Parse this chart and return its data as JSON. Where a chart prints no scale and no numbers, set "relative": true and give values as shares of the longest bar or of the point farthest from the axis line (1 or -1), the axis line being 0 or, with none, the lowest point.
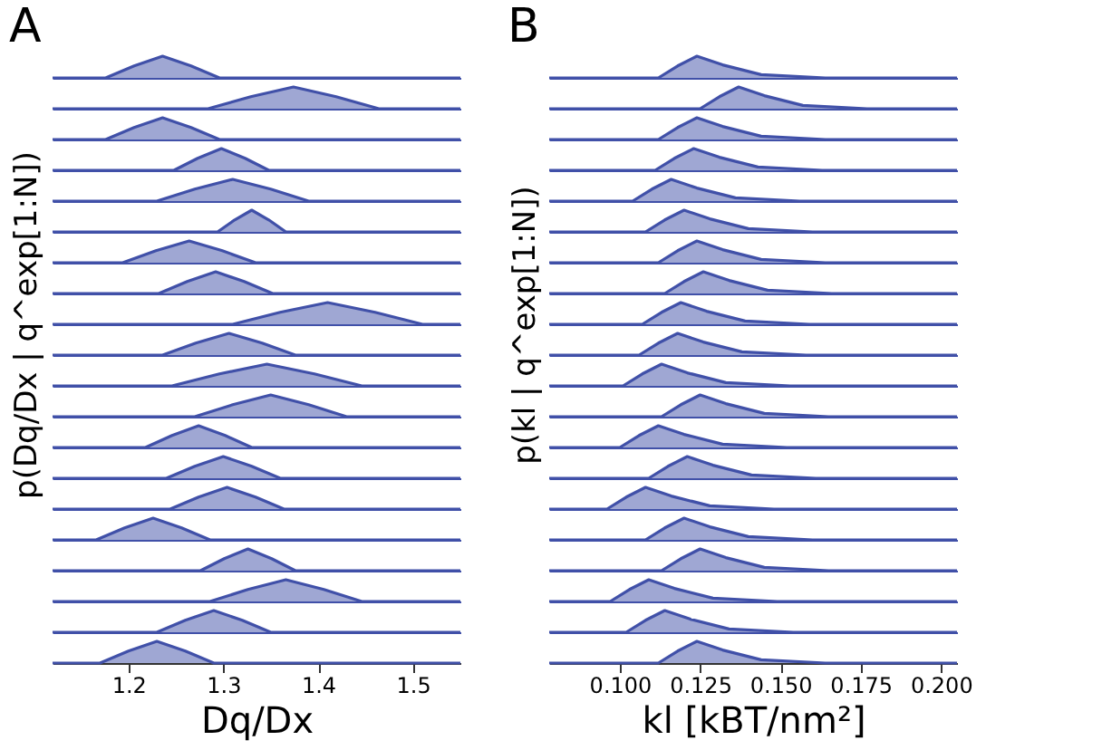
{
  "chart_data": [
    {
      "type": "area",
      "title": "A",
      "ylabel": "p(Dq/Dx | q^exp[1:N])",
      "relative": true,
      "color": "#4050a8",
      "xlim": [
        1.12,
        1.55
      ],
      "tick_labels": false,
      "x": [
        1.12,
        1.176,
        1.206,
        1.236,
        1.266,
        1.296,
        1.55
      ],
      "values": [
        0,
        0,
        0.55,
        1,
        0.55,
        0,
        0
      ]
    },
    {
      "type": "area",
      "relative": true,
      "color": "#4050a8",
      "xlim": [
        1.12,
        1.55
      ],
      "tick_labels": false,
      "x": [
        1.12,
        1.284,
        1.329,
        1.374,
        1.419,
        1.464,
        1.55
      ],
      "values": [
        0,
        0,
        0.55,
        1,
        0.55,
        0,
        0
      ]
    },
    {
      "type": "area",
      "relative": true,
      "color": "#4050a8",
      "xlim": [
        1.12,
        1.55
      ],
      "tick_labels": false,
      "x": [
        1.12,
        1.176,
        1.206,
        1.236,
        1.266,
        1.296,
        1.55
      ],
      "values": [
        0,
        0,
        0.55,
        1,
        0.55,
        0,
        0
      ]
    },
    {
      "type": "area",
      "relative": true,
      "color": "#4050a8",
      "xlim": [
        1.12,
        1.55
      ],
      "tick_labels": false,
      "x": [
        1.12,
        1.248,
        1.273,
        1.298,
        1.323,
        1.348,
        1.55
      ],
      "values": [
        0,
        0,
        0.55,
        1,
        0.55,
        0,
        0
      ]
    },
    {
      "type": "area",
      "relative": true,
      "color": "#4050a8",
      "xlim": [
        1.12,
        1.55
      ],
      "tick_labels": false,
      "x": [
        1.12,
        1.23,
        1.27,
        1.31,
        1.35,
        1.39,
        1.55
      ],
      "values": [
        0,
        0,
        0.55,
        1,
        0.55,
        0,
        0
      ]
    },
    {
      "type": "area",
      "relative": true,
      "color": "#4050a8",
      "xlim": [
        1.12,
        1.55
      ],
      "tick_labels": false,
      "x": [
        1.12,
        1.294,
        1.312,
        1.33,
        1.348,
        1.366,
        1.55
      ],
      "values": [
        0,
        0,
        0.55,
        1,
        0.55,
        0,
        0
      ]
    },
    {
      "type": "area",
      "relative": true,
      "color": "#4050a8",
      "xlim": [
        1.12,
        1.55
      ],
      "tick_labels": false,
      "x": [
        1.12,
        1.194,
        1.229,
        1.264,
        1.299,
        1.334,
        1.55
      ],
      "values": [
        0,
        0,
        0.55,
        1,
        0.55,
        0,
        0
      ]
    },
    {
      "type": "area",
      "relative": true,
      "color": "#4050a8",
      "xlim": [
        1.12,
        1.55
      ],
      "tick_labels": false,
      "x": [
        1.12,
        1.232,
        1.262,
        1.292,
        1.322,
        1.352,
        1.55
      ],
      "values": [
        0,
        0,
        0.55,
        1,
        0.55,
        0,
        0
      ]
    },
    {
      "type": "area",
      "relative": true,
      "color": "#4050a8",
      "xlim": [
        1.12,
        1.55
      ],
      "tick_labels": false,
      "x": [
        1.12,
        1.31,
        1.36,
        1.41,
        1.46,
        1.51,
        1.55
      ],
      "values": [
        0,
        0,
        0.55,
        1,
        0.55,
        0,
        0
      ]
    },
    {
      "type": "area",
      "relative": true,
      "color": "#4050a8",
      "xlim": [
        1.12,
        1.55
      ],
      "tick_labels": false,
      "x": [
        1.12,
        1.236,
        1.271,
        1.306,
        1.341,
        1.376,
        1.55
      ],
      "values": [
        0,
        0,
        0.55,
        1,
        0.55,
        0,
        0
      ]
    },
    {
      "type": "area",
      "relative": true,
      "color": "#4050a8",
      "xlim": [
        1.12,
        1.55
      ],
      "tick_labels": false,
      "x": [
        1.12,
        1.246,
        1.296,
        1.346,
        1.396,
        1.446,
        1.55
      ],
      "values": [
        0,
        0,
        0.55,
        1,
        0.55,
        0,
        0
      ]
    },
    {
      "type": "area",
      "relative": true,
      "color": "#4050a8",
      "xlim": [
        1.12,
        1.55
      ],
      "tick_labels": false,
      "x": [
        1.12,
        1.27,
        1.31,
        1.35,
        1.39,
        1.43,
        1.55
      ],
      "values": [
        0,
        0,
        0.55,
        1,
        0.55,
        0,
        0
      ]
    },
    {
      "type": "area",
      "relative": true,
      "color": "#4050a8",
      "xlim": [
        1.12,
        1.55
      ],
      "tick_labels": false,
      "x": [
        1.12,
        1.218,
        1.246,
        1.274,
        1.302,
        1.33,
        1.55
      ],
      "values": [
        0,
        0,
        0.55,
        1,
        0.55,
        0,
        0
      ]
    },
    {
      "type": "area",
      "relative": true,
      "color": "#4050a8",
      "xlim": [
        1.12,
        1.55
      ],
      "tick_labels": false,
      "x": [
        1.12,
        1.24,
        1.27,
        1.3,
        1.33,
        1.36,
        1.55
      ],
      "values": [
        0,
        0,
        0.55,
        1,
        0.55,
        0,
        0
      ]
    },
    {
      "type": "area",
      "relative": true,
      "color": "#4050a8",
      "xlim": [
        1.12,
        1.55
      ],
      "tick_labels": false,
      "x": [
        1.12,
        1.244,
        1.274,
        1.304,
        1.334,
        1.364,
        1.55
      ],
      "values": [
        0,
        0,
        0.55,
        1,
        0.55,
        0,
        0
      ]
    },
    {
      "type": "area",
      "relative": true,
      "color": "#4050a8",
      "xlim": [
        1.12,
        1.55
      ],
      "tick_labels": false,
      "x": [
        1.12,
        1.166,
        1.196,
        1.226,
        1.256,
        1.286,
        1.55
      ],
      "values": [
        0,
        0,
        0.55,
        1,
        0.55,
        0,
        0
      ]
    },
    {
      "type": "area",
      "relative": true,
      "color": "#4050a8",
      "xlim": [
        1.12,
        1.55
      ],
      "tick_labels": false,
      "x": [
        1.12,
        1.276,
        1.301,
        1.326,
        1.351,
        1.376,
        1.55
      ],
      "values": [
        0,
        0,
        0.55,
        1,
        0.55,
        0,
        0
      ]
    },
    {
      "type": "area",
      "relative": true,
      "color": "#4050a8",
      "xlim": [
        1.12,
        1.55
      ],
      "tick_labels": false,
      "x": [
        1.12,
        1.286,
        1.326,
        1.366,
        1.406,
        1.446,
        1.55
      ],
      "values": [
        0,
        0,
        0.55,
        1,
        0.55,
        0,
        0
      ]
    },
    {
      "type": "area",
      "relative": true,
      "color": "#4050a8",
      "xlim": [
        1.12,
        1.55
      ],
      "tick_labels": false,
      "x": [
        1.12,
        1.23,
        1.26,
        1.29,
        1.32,
        1.35,
        1.55
      ],
      "values": [
        0,
        0,
        0.55,
        1,
        0.55,
        0,
        0
      ]
    },
    {
      "type": "area",
      "xlabel": "Dq/Dx",
      "relative": true,
      "color": "#4050a8",
      "xlim": [
        1.12,
        1.55
      ],
      "xticks": [
        1.2,
        1.3,
        1.4,
        1.5
      ],
      "tick_labels": "x",
      "x": [
        1.12,
        1.17,
        1.2,
        1.23,
        1.26,
        1.29,
        1.55
      ],
      "values": [
        0,
        0,
        0.55,
        1,
        0.55,
        0,
        0
      ]
    },
    {
      "type": "area",
      "title": "B",
      "ylabel": "p(kl | q^exp[1:N])",
      "relative": true,
      "color": "#4050a8",
      "xlim": [
        0.078,
        0.205
      ],
      "tick_labels": false,
      "x": [
        0.078,
        0.112,
        0.118,
        0.124,
        0.132,
        0.144,
        0.164,
        0.205
      ],
      "values": [
        0,
        0,
        0.55,
        1,
        0.6,
        0.15,
        0,
        0
      ]
    },
    {
      "type": "area",
      "relative": true,
      "color": "#4050a8",
      "xlim": [
        0.078,
        0.205
      ],
      "tick_labels": false,
      "x": [
        0.078,
        0.125,
        0.131,
        0.137,
        0.145,
        0.157,
        0.177,
        0.205
      ],
      "values": [
        0,
        0,
        0.55,
        1,
        0.6,
        0.15,
        0,
        0
      ]
    },
    {
      "type": "area",
      "relative": true,
      "color": "#4050a8",
      "xlim": [
        0.078,
        0.205
      ],
      "tick_labels": false,
      "x": [
        0.078,
        0.112,
        0.118,
        0.124,
        0.132,
        0.144,
        0.164,
        0.205
      ],
      "values": [
        0,
        0,
        0.55,
        1,
        0.6,
        0.15,
        0,
        0
      ]
    },
    {
      "type": "area",
      "relative": true,
      "color": "#4050a8",
      "xlim": [
        0.078,
        0.205
      ],
      "tick_labels": false,
      "x": [
        0.078,
        0.111,
        0.117,
        0.123,
        0.131,
        0.143,
        0.163,
        0.205
      ],
      "values": [
        0,
        0,
        0.55,
        1,
        0.6,
        0.15,
        0,
        0
      ]
    },
    {
      "type": "area",
      "relative": true,
      "color": "#4050a8",
      "xlim": [
        0.078,
        0.205
      ],
      "tick_labels": false,
      "x": [
        0.078,
        0.104,
        0.11,
        0.116,
        0.124,
        0.136,
        0.156,
        0.205
      ],
      "values": [
        0,
        0,
        0.55,
        1,
        0.6,
        0.15,
        0,
        0
      ]
    },
    {
      "type": "area",
      "relative": true,
      "color": "#4050a8",
      "xlim": [
        0.078,
        0.205
      ],
      "tick_labels": false,
      "x": [
        0.078,
        0.108,
        0.114,
        0.12,
        0.128,
        0.14,
        0.16,
        0.205
      ],
      "values": [
        0,
        0,
        0.55,
        1,
        0.6,
        0.15,
        0,
        0
      ]
    },
    {
      "type": "area",
      "relative": true,
      "color": "#4050a8",
      "xlim": [
        0.078,
        0.205
      ],
      "tick_labels": false,
      "x": [
        0.078,
        0.112,
        0.118,
        0.124,
        0.132,
        0.144,
        0.164,
        0.205
      ],
      "values": [
        0,
        0,
        0.55,
        1,
        0.6,
        0.15,
        0,
        0
      ]
    },
    {
      "type": "area",
      "relative": true,
      "color": "#4050a8",
      "xlim": [
        0.078,
        0.205
      ],
      "tick_labels": false,
      "x": [
        0.078,
        0.114,
        0.12,
        0.126,
        0.134,
        0.146,
        0.166,
        0.205
      ],
      "values": [
        0,
        0,
        0.55,
        1,
        0.6,
        0.15,
        0,
        0
      ]
    },
    {
      "type": "area",
      "relative": true,
      "color": "#4050a8",
      "xlim": [
        0.078,
        0.205
      ],
      "tick_labels": false,
      "x": [
        0.078,
        0.107,
        0.113,
        0.119,
        0.127,
        0.139,
        0.159,
        0.205
      ],
      "values": [
        0,
        0,
        0.55,
        1,
        0.6,
        0.15,
        0,
        0
      ]
    },
    {
      "type": "area",
      "relative": true,
      "color": "#4050a8",
      "xlim": [
        0.078,
        0.205
      ],
      "tick_labels": false,
      "x": [
        0.078,
        0.106,
        0.112,
        0.118,
        0.126,
        0.138,
        0.158,
        0.205
      ],
      "values": [
        0,
        0,
        0.55,
        1,
        0.6,
        0.15,
        0,
        0
      ]
    },
    {
      "type": "area",
      "relative": true,
      "color": "#4050a8",
      "xlim": [
        0.078,
        0.205
      ],
      "tick_labels": false,
      "x": [
        0.078,
        0.101,
        0.107,
        0.113,
        0.121,
        0.133,
        0.153,
        0.205
      ],
      "values": [
        0,
        0,
        0.55,
        1,
        0.6,
        0.15,
        0,
        0
      ]
    },
    {
      "type": "area",
      "relative": true,
      "color": "#4050a8",
      "xlim": [
        0.078,
        0.205
      ],
      "tick_labels": false,
      "x": [
        0.078,
        0.113,
        0.119,
        0.125,
        0.133,
        0.145,
        0.165,
        0.205
      ],
      "values": [
        0,
        0,
        0.55,
        1,
        0.6,
        0.15,
        0,
        0
      ]
    },
    {
      "type": "area",
      "relative": true,
      "color": "#4050a8",
      "xlim": [
        0.078,
        0.205
      ],
      "tick_labels": false,
      "x": [
        0.078,
        0.1,
        0.106,
        0.112,
        0.12,
        0.132,
        0.152,
        0.205
      ],
      "values": [
        0,
        0,
        0.55,
        1,
        0.6,
        0.15,
        0,
        0
      ]
    },
    {
      "type": "area",
      "relative": true,
      "color": "#4050a8",
      "xlim": [
        0.078,
        0.205
      ],
      "tick_labels": false,
      "x": [
        0.078,
        0.109,
        0.115,
        0.121,
        0.129,
        0.141,
        0.161,
        0.205
      ],
      "values": [
        0,
        0,
        0.55,
        1,
        0.6,
        0.15,
        0,
        0
      ]
    },
    {
      "type": "area",
      "relative": true,
      "color": "#4050a8",
      "xlim": [
        0.078,
        0.205
      ],
      "tick_labels": false,
      "x": [
        0.078,
        0.096,
        0.102,
        0.108,
        0.116,
        0.128,
        0.148,
        0.205
      ],
      "values": [
        0,
        0,
        0.55,
        1,
        0.6,
        0.15,
        0,
        0
      ]
    },
    {
      "type": "area",
      "relative": true,
      "color": "#4050a8",
      "xlim": [
        0.078,
        0.205
      ],
      "tick_labels": false,
      "x": [
        0.078,
        0.108,
        0.114,
        0.12,
        0.128,
        0.14,
        0.16,
        0.205
      ],
      "values": [
        0,
        0,
        0.55,
        1,
        0.6,
        0.15,
        0,
        0
      ]
    },
    {
      "type": "area",
      "relative": true,
      "color": "#4050a8",
      "xlim": [
        0.078,
        0.205
      ],
      "tick_labels": false,
      "x": [
        0.078,
        0.113,
        0.119,
        0.125,
        0.133,
        0.145,
        0.165,
        0.205
      ],
      "values": [
        0,
        0,
        0.55,
        1,
        0.6,
        0.15,
        0,
        0
      ]
    },
    {
      "type": "area",
      "relative": true,
      "color": "#4050a8",
      "xlim": [
        0.078,
        0.205
      ],
      "tick_labels": false,
      "x": [
        0.078,
        0.097,
        0.103,
        0.109,
        0.117,
        0.129,
        0.149,
        0.205
      ],
      "values": [
        0,
        0,
        0.55,
        1,
        0.6,
        0.15,
        0,
        0
      ]
    },
    {
      "type": "area",
      "relative": true,
      "color": "#4050a8",
      "xlim": [
        0.078,
        0.205
      ],
      "tick_labels": false,
      "x": [
        0.078,
        0.102,
        0.108,
        0.114,
        0.122,
        0.134,
        0.154,
        0.205
      ],
      "values": [
        0,
        0,
        0.55,
        1,
        0.6,
        0.15,
        0,
        0
      ]
    },
    {
      "type": "area",
      "xlabel": "kl [kBT/nm²]",
      "relative": true,
      "color": "#4050a8",
      "xlim": [
        0.078,
        0.205
      ],
      "xticks": [
        {
          "value": 0.1,
          "label": "0.100"
        },
        {
          "value": 0.125,
          "label": "0.125"
        },
        {
          "value": 0.15,
          "label": "0.150"
        },
        {
          "value": 0.175,
          "label": "0.175"
        },
        {
          "value": 0.2,
          "label": "0.200"
        }
      ],
      "tick_labels": "x",
      "x": [
        0.078,
        0.112,
        0.118,
        0.124,
        0.132,
        0.144,
        0.164,
        0.205
      ],
      "values": [
        0,
        0,
        0.55,
        1,
        0.6,
        0.15,
        0,
        0
      ]
    }
  ]
}
